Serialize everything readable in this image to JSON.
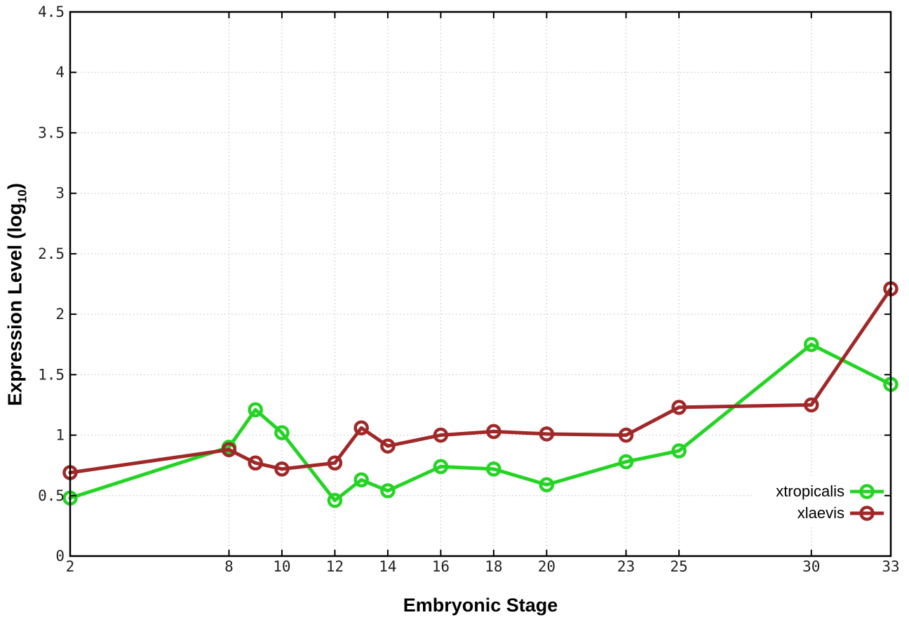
{
  "chart_data": {
    "type": "line",
    "title": "",
    "xlabel": "Embryonic Stage",
    "ylabel": "Expression Level (log10)",
    "xlim": [
      2,
      33
    ],
    "ylim": [
      0,
      4.5
    ],
    "grid": true,
    "legend_position": "inside-bottom-right",
    "x": [
      2,
      8,
      9,
      10,
      12,
      13,
      14,
      16,
      18,
      20,
      23,
      25,
      30,
      33
    ],
    "x_ticks": [
      2,
      8,
      10,
      12,
      14,
      16,
      18,
      20,
      23,
      25,
      30,
      33
    ],
    "x_tick_labels": [
      "2",
      "8",
      "10",
      "12",
      "14",
      "16",
      "18",
      "20",
      "23",
      "25",
      "30",
      "33"
    ],
    "y_ticks": [
      0,
      0.5,
      1,
      1.5,
      2,
      2.5,
      3,
      3.5,
      4,
      4.5
    ],
    "y_tick_labels": [
      "0",
      "0.5",
      "1",
      "1.5",
      "2",
      "2.5",
      "3",
      "3.5",
      "4",
      "4.5"
    ],
    "series": [
      {
        "name": "xtropicalis",
        "color": "#24d424",
        "marker": "open-circle",
        "values": [
          0.48,
          0.9,
          1.21,
          1.02,
          0.46,
          0.63,
          0.54,
          0.74,
          0.72,
          0.59,
          0.78,
          0.87,
          1.75,
          1.42
        ]
      },
      {
        "name": "xlaevis",
        "color": "#a02828",
        "marker": "open-circle",
        "values": [
          0.69,
          0.88,
          0.77,
          0.72,
          0.77,
          1.06,
          0.91,
          1.0,
          1.03,
          1.01,
          1.0,
          1.23,
          1.25,
          2.21
        ]
      }
    ]
  },
  "labels": {
    "y_main": "Expression Level (log",
    "y_sub": "10",
    "y_close": ")"
  }
}
